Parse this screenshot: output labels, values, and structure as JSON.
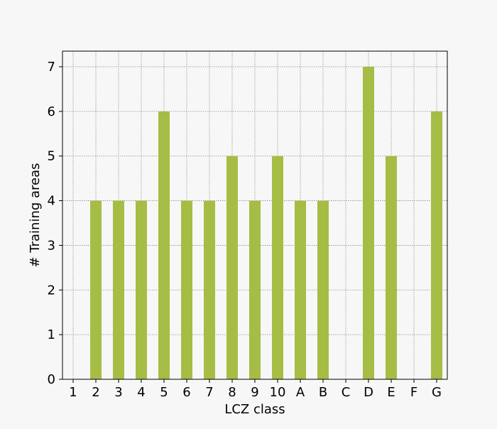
{
  "chart_data": {
    "type": "bar",
    "title": "",
    "xlabel": "LCZ class",
    "ylabel": "# Training areas",
    "categories": [
      "1",
      "2",
      "3",
      "4",
      "5",
      "6",
      "7",
      "8",
      "9",
      "10",
      "A",
      "B",
      "C",
      "D",
      "E",
      "F",
      "G"
    ],
    "values": [
      0,
      4,
      4,
      4,
      6,
      4,
      4,
      5,
      4,
      5,
      4,
      4,
      0,
      7,
      5,
      0,
      6
    ],
    "ylim": [
      0,
      7.35
    ],
    "yticks": [
      0,
      1,
      2,
      3,
      4,
      5,
      6,
      7
    ],
    "grid": true,
    "legend": "none",
    "bar_color": "#a5bd45",
    "grid_color": "#8c8c8c",
    "background_color": "#f7f7f7"
  }
}
